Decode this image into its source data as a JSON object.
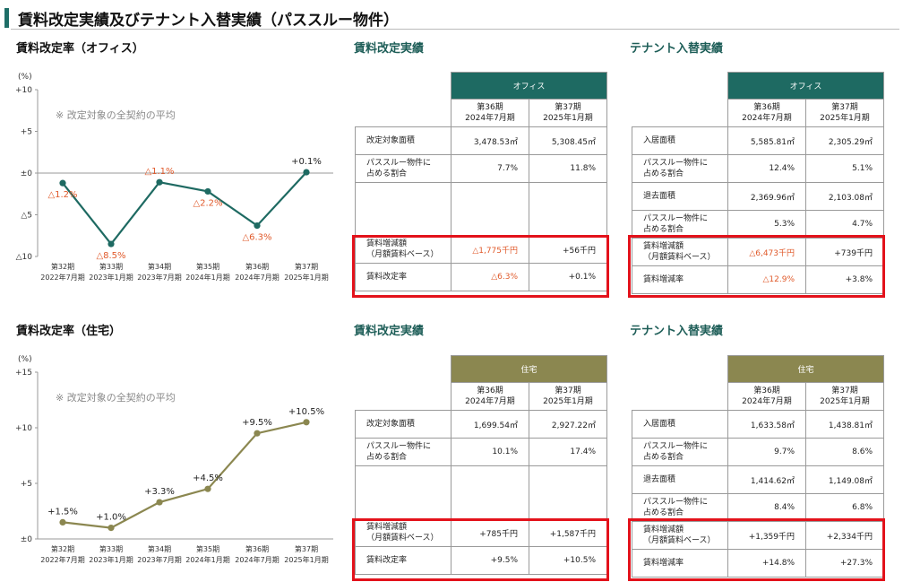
{
  "page_title": "賃料改定実績及びテナント入替実績（パススルー物件）",
  "sections": {
    "office_chart_title": "賃料改定率（オフィス）",
    "residential_chart_title": "賃料改定率（住宅）",
    "revision_title": "賃料改定実績",
    "tenant_title": "テナント入替実績"
  },
  "colors": {
    "teal": "#1e6a62",
    "olive": "#8b8750",
    "negative": "#e05a2b",
    "highlight": "#e3121b"
  },
  "chart_data": [
    {
      "type": "line",
      "title": "賃料改定率（オフィス）",
      "note": "※ 改定対象の全契約の平均",
      "yunit": "(%)",
      "ylim": [
        -10,
        10
      ],
      "yticks": [
        "+10",
        "+5",
        "±0",
        "△5",
        "△10"
      ],
      "categories": [
        [
          "第32期",
          "2022年7月期"
        ],
        [
          "第33期",
          "2023年1月期"
        ],
        [
          "第34期",
          "2023年7月期"
        ],
        [
          "第35期",
          "2024年1月期"
        ],
        [
          "第36期",
          "2024年7月期"
        ],
        [
          "第37期",
          "2025年1月期"
        ]
      ],
      "values": [
        -1.2,
        -8.5,
        -1.1,
        -2.2,
        -6.3,
        0.1
      ],
      "data_labels": [
        "△1.2%",
        "△8.5%",
        "△1.1%",
        "△2.2%",
        "△6.3%",
        "+0.1%"
      ],
      "line_color": "#1e6a62"
    },
    {
      "type": "line",
      "title": "賃料改定率（住宅）",
      "note": "※ 改定対象の全契約の平均",
      "yunit": "(%)",
      "ylim": [
        0,
        15
      ],
      "yticks": [
        "+15",
        "+10",
        "+5",
        "±0"
      ],
      "categories": [
        [
          "第32期",
          "2022年7月期"
        ],
        [
          "第33期",
          "2023年1月期"
        ],
        [
          "第34期",
          "2023年7月期"
        ],
        [
          "第35期",
          "2024年1月期"
        ],
        [
          "第36期",
          "2024年7月期"
        ],
        [
          "第37期",
          "2025年1月期"
        ]
      ],
      "values": [
        1.5,
        1.0,
        3.3,
        4.5,
        9.5,
        10.5
      ],
      "data_labels": [
        "+1.5%",
        "+1.0%",
        "+3.3%",
        "+4.5%",
        "+9.5%",
        "+10.5%"
      ],
      "line_color": "#8b8750"
    }
  ],
  "period_headers": [
    [
      "第36期",
      "2024年7月期"
    ],
    [
      "第37期",
      "2025年1月期"
    ]
  ],
  "tables": {
    "office_revision": {
      "category": "オフィス",
      "rows": [
        {
          "label": [
            "改定対象面積"
          ],
          "v": [
            "3,478.53㎡",
            "5,308.45㎡"
          ]
        },
        {
          "label": [
            "パススルー物件に",
            "占める割合"
          ],
          "v": [
            "7.7%",
            "11.8%"
          ]
        },
        {
          "label": [
            "賃料増減額",
            "（月額賃料ベース）"
          ],
          "v": [
            "△1,775千円",
            "+56千円"
          ]
        },
        {
          "label": [
            "賃料改定率"
          ],
          "v": [
            "△6.3%",
            "+0.1%"
          ]
        }
      ]
    },
    "office_tenant": {
      "category": "オフィス",
      "rows": [
        {
          "label": [
            "入居面積"
          ],
          "v": [
            "5,585.81㎡",
            "2,305.29㎡"
          ]
        },
        {
          "label": [
            "パススルー物件に",
            "占める割合"
          ],
          "v": [
            "12.4%",
            "5.1%"
          ]
        },
        {
          "label": [
            "退去面積"
          ],
          "v": [
            "2,369.96㎡",
            "2,103.08㎡"
          ]
        },
        {
          "label": [
            "パススルー物件に",
            "占める割合"
          ],
          "v": [
            "5.3%",
            "4.7%"
          ]
        },
        {
          "label": [
            "賃料増減額",
            "（月額賃料ベース）"
          ],
          "v": [
            "△6,473千円",
            "+739千円"
          ]
        },
        {
          "label": [
            "賃料増減率"
          ],
          "v": [
            "△12.9%",
            "+3.8%"
          ]
        }
      ]
    },
    "res_revision": {
      "category": "住宅",
      "rows": [
        {
          "label": [
            "改定対象面積"
          ],
          "v": [
            "1,699.54㎡",
            "2,927.22㎡"
          ]
        },
        {
          "label": [
            "パススルー物件に",
            "占める割合"
          ],
          "v": [
            "10.1%",
            "17.4%"
          ]
        },
        {
          "label": [
            "賃料増減額",
            "（月額賃料ベース）"
          ],
          "v": [
            "+785千円",
            "+1,587千円"
          ]
        },
        {
          "label": [
            "賃料改定率"
          ],
          "v": [
            "+9.5%",
            "+10.5%"
          ]
        }
      ]
    },
    "res_tenant": {
      "category": "住宅",
      "rows": [
        {
          "label": [
            "入居面積"
          ],
          "v": [
            "1,633.58㎡",
            "1,438.81㎡"
          ]
        },
        {
          "label": [
            "パススルー物件に",
            "占める割合"
          ],
          "v": [
            "9.7%",
            "8.6%"
          ]
        },
        {
          "label": [
            "退去面積"
          ],
          "v": [
            "1,414.62㎡",
            "1,149.08㎡"
          ]
        },
        {
          "label": [
            "パススルー物件に",
            "占める割合"
          ],
          "v": [
            "8.4%",
            "6.8%"
          ]
        },
        {
          "label": [
            "賃料増減額",
            "（月額賃料ベース）"
          ],
          "v": [
            "+1,359千円",
            "+2,334千円"
          ]
        },
        {
          "label": [
            "賃料増減率"
          ],
          "v": [
            "+14.8%",
            "+27.3%"
          ]
        }
      ]
    }
  }
}
